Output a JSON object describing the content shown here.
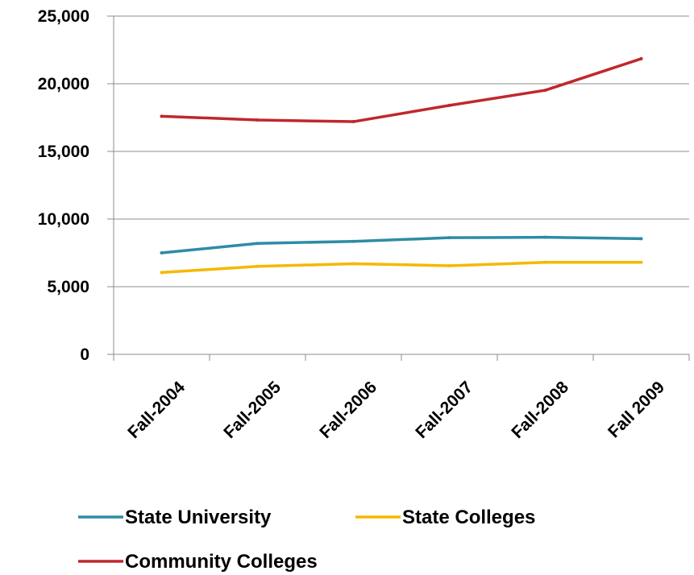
{
  "chart_data": {
    "type": "line",
    "categories": [
      "Fall-2004",
      "Fall-2005",
      "Fall-2006",
      "Fall-2007",
      "Fall-2008",
      "Fall 2009"
    ],
    "series": [
      {
        "name": "State University",
        "color": "#2e8ba6",
        "values": [
          7500,
          8200,
          8350,
          8620,
          8650,
          8550
        ]
      },
      {
        "name": "State Colleges",
        "color": "#f5b800",
        "values": [
          6050,
          6500,
          6700,
          6550,
          6800,
          6800
        ]
      },
      {
        "name": "Community Colleges",
        "color": "#c0272d",
        "values": [
          17600,
          17320,
          17200,
          18400,
          19520,
          21850
        ]
      }
    ],
    "y_ticks": [
      "0",
      "5,000",
      "10,000",
      "15,000",
      "20,000",
      "25,000"
    ],
    "ylim": [
      0,
      25000
    ],
    "title": "",
    "xlabel": "",
    "ylabel": "",
    "grid": "horizontal",
    "legend_position": "bottom"
  }
}
